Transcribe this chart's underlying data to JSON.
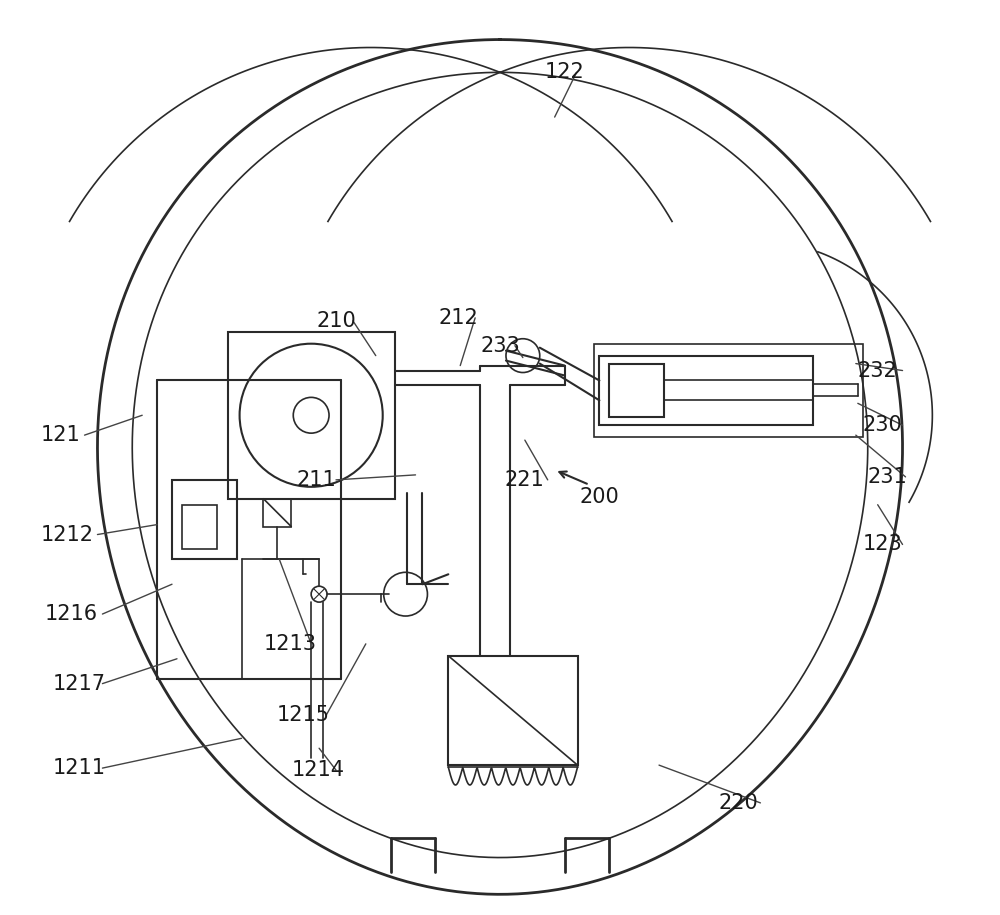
{
  "bg_color": "#ffffff",
  "line_color": "#2a2a2a",
  "label_color": "#1a1a1a",
  "figsize": [
    10.0,
    9.15
  ],
  "dpi": 100
}
